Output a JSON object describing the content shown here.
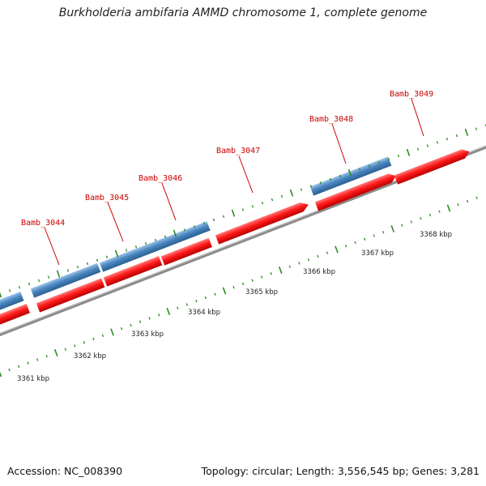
{
  "title": "Burkholderia ambifaria AMMD chromosome 1, complete genome",
  "accession_line": "Accession: NC_008390",
  "summary_line": "Topology: circular; Length: 3,556,545 bp; Genes: 3,281",
  "colors": {
    "forward_gene": "#ff1a1a",
    "reverse_gene": "#4a86c0",
    "backbone": "#8a8a8a",
    "ticks": "#2e8b22",
    "gene_label": "#cc0000"
  },
  "genes": [
    {
      "name": "Bamb_3044"
    },
    {
      "name": "Bamb_3045"
    },
    {
      "name": "Bamb_3046"
    },
    {
      "name": "Bamb_3047"
    },
    {
      "name": "Bamb_3048"
    },
    {
      "name": "Bamb_3049"
    }
  ],
  "ruler": [
    "3361 kbp",
    "3362 kbp",
    "3363 kbp",
    "3364 kbp",
    "3365 kbp",
    "3366 kbp",
    "3367 kbp",
    "3368 kbp"
  ]
}
